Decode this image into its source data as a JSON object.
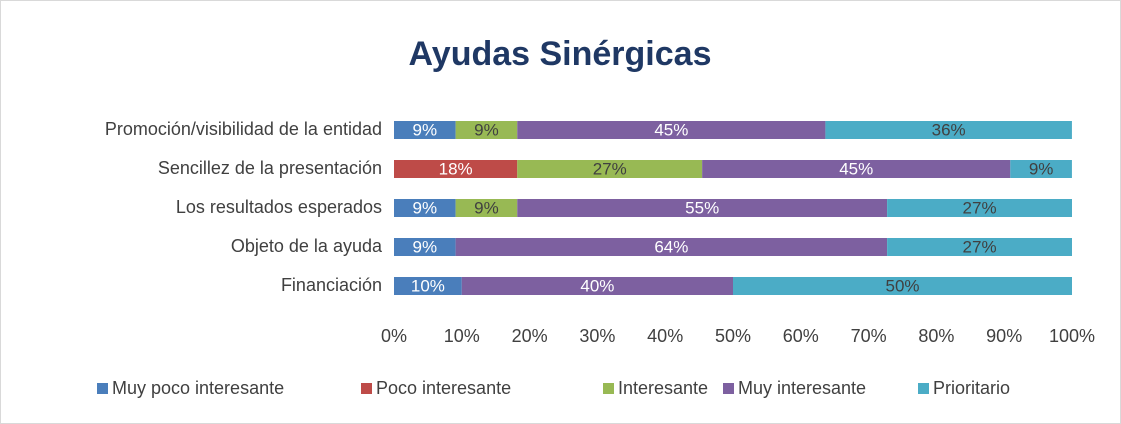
{
  "chart_data": {
    "type": "stacked_barh",
    "title": "Ayudas Sinérgicas",
    "categories": [
      "Promoción/visibilidad de la entidad",
      "Sencillez de la presentación",
      "Los resultados esperados",
      "Objeto de la ayuda",
      "Financiación"
    ],
    "series": [
      {
        "name": "Muy poco interesante",
        "color": "#4a7ebb",
        "label_color": "#ffffff",
        "values": [
          9.09,
          null,
          9.09,
          9.09,
          10
        ],
        "value_labels": [
          "9%",
          null,
          "9%",
          "9%",
          "10%"
        ]
      },
      {
        "name": "Poco interesante",
        "color": "#be4b48",
        "label_color": "#ffffff",
        "values": [
          null,
          18.18,
          null,
          null,
          null
        ],
        "value_labels": [
          null,
          "18%",
          null,
          null,
          null
        ]
      },
      {
        "name": "Interesante",
        "color": "#98b954",
        "label_color": "#404040",
        "values": [
          9.09,
          27.27,
          9.09,
          null,
          null
        ],
        "value_labels": [
          "9%",
          "27%",
          "9%",
          null,
          null
        ]
      },
      {
        "name": "Muy interesante",
        "color": "#7d60a0",
        "label_color": "#ffffff",
        "values": [
          45.45,
          45.45,
          54.55,
          63.64,
          40
        ],
        "value_labels": [
          "45%",
          "45%",
          "55%",
          "64%",
          "40%"
        ]
      },
      {
        "name": "Prioritario",
        "color": "#4bacc6",
        "label_color": "#404040",
        "values": [
          36.36,
          9.09,
          27.27,
          27.27,
          50
        ],
        "value_labels": [
          "36%",
          "9%",
          "27%",
          "27%",
          "50%"
        ]
      }
    ],
    "xlim": [
      0,
      100
    ],
    "xticks": [
      {
        "value": 0,
        "label": "0%"
      },
      {
        "value": 10,
        "label": "10%"
      },
      {
        "value": 20,
        "label": "20%"
      },
      {
        "value": 30,
        "label": "30%"
      },
      {
        "value": 40,
        "label": "40%"
      },
      {
        "value": 50,
        "label": "50%"
      },
      {
        "value": 60,
        "label": "60%"
      },
      {
        "value": 70,
        "label": "70%"
      },
      {
        "value": 80,
        "label": "80%"
      },
      {
        "value": 90,
        "label": "90%"
      },
      {
        "value": 100,
        "label": "100%"
      }
    ],
    "grid": false,
    "legend": "bottom"
  }
}
